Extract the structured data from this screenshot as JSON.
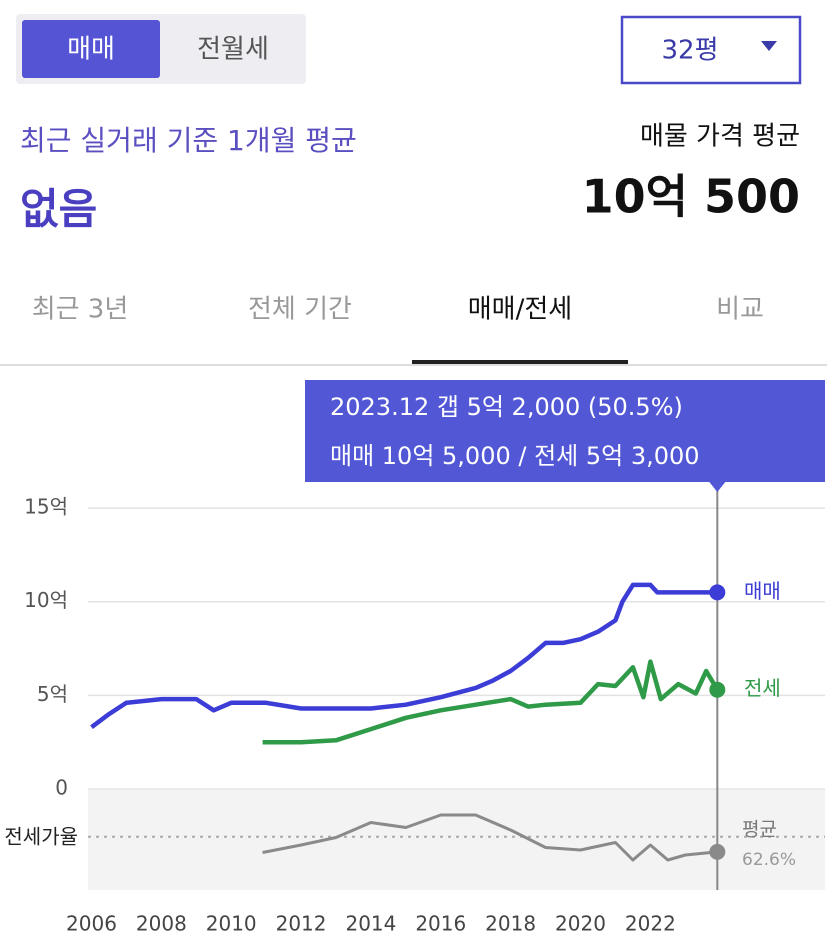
{
  "header": {
    "toggle": [
      "매매",
      "전월세"
    ],
    "size_select": "32평",
    "recent_label": "최근 실거래 기준 1개월 평균",
    "recent_value": "없음",
    "listing_label": "매물 가격 평균",
    "listing_value": "10억 500"
  },
  "tabs": [
    "최근 3년",
    "전체 기간",
    "매매/전세",
    "비교"
  ],
  "chart_data": {
    "type": "line",
    "annotations": [
      "2023.12  갭 5억 2,000 (50.5%)",
      "매매 10억 5,000 / 전세 5억 3,000"
    ],
    "xlim": [
      2005.9,
      2027
    ],
    "xticks": [
      2006,
      2008,
      2010,
      2012,
      2014,
      2016,
      2018,
      2020,
      2022
    ],
    "ylim": [
      0,
      17.3
    ],
    "yticks": [
      0,
      {
        "value": 5,
        "label": "5억"
      },
      {
        "value": 10,
        "label": "10억"
      },
      {
        "value": 15,
        "label": "15억"
      }
    ],
    "y2lim": [
      20,
      100
    ],
    "grid": true,
    "series": [
      {
        "name": "매매",
        "color": "#3c3cd6",
        "x": [
          2006.0,
          2006.5,
          2007.0,
          2008.0,
          2009.0,
          2009.5,
          2010.0,
          2011.0,
          2012.0,
          2013.0,
          2014.0,
          2015.0,
          2016.0,
          2017.0,
          2017.5,
          2018.0,
          2018.5,
          2019.0,
          2019.5,
          2020.0,
          2020.5,
          2021.0,
          2021.2,
          2021.5,
          2022.0,
          2022.2,
          2023.917
        ],
        "values": [
          3.3,
          4.0,
          4.6,
          4.8,
          4.8,
          4.2,
          4.6,
          4.6,
          4.3,
          4.3,
          4.3,
          4.5,
          4.9,
          5.4,
          5.8,
          6.3,
          7.0,
          7.8,
          7.8,
          8.0,
          8.4,
          9.0,
          10.0,
          10.9,
          10.9,
          10.5,
          10.5
        ]
      },
      {
        "name": "전세",
        "color": "#2f9a48",
        "x": [
          2010.9,
          2012.0,
          2013.0,
          2014.0,
          2015.0,
          2016.0,
          2017.0,
          2018.0,
          2018.5,
          2019.0,
          2020.0,
          2020.5,
          2021.0,
          2021.5,
          2021.8,
          2022.0,
          2022.3,
          2022.8,
          2023.3,
          2023.6,
          2023.917
        ],
        "values": [
          2.5,
          2.5,
          2.6,
          3.2,
          3.8,
          4.2,
          4.5,
          4.8,
          4.4,
          4.5,
          4.6,
          5.6,
          5.5,
          6.5,
          4.9,
          6.8,
          4.8,
          5.6,
          5.1,
          6.3,
          5.3
        ]
      },
      {
        "name": "전세가율",
        "color": "#8a8a8a",
        "axis": "y2",
        "x": [
          2010.9,
          2012.0,
          2013.0,
          2013.5,
          2014.0,
          2015.0,
          2016.0,
          2017.0,
          2018.0,
          2019.0,
          2020.0,
          2021.0,
          2021.5,
          2022.0,
          2022.5,
          2023.0,
          2023.917
        ],
        "values": [
          50,
          56,
          62,
          68,
          74,
          70,
          80,
          80,
          68,
          54,
          52,
          58,
          44,
          56,
          44,
          48,
          50.5
        ]
      }
    ],
    "average": {
      "label": "평균",
      "value": 62.6,
      "value_label": "62.6%"
    }
  }
}
